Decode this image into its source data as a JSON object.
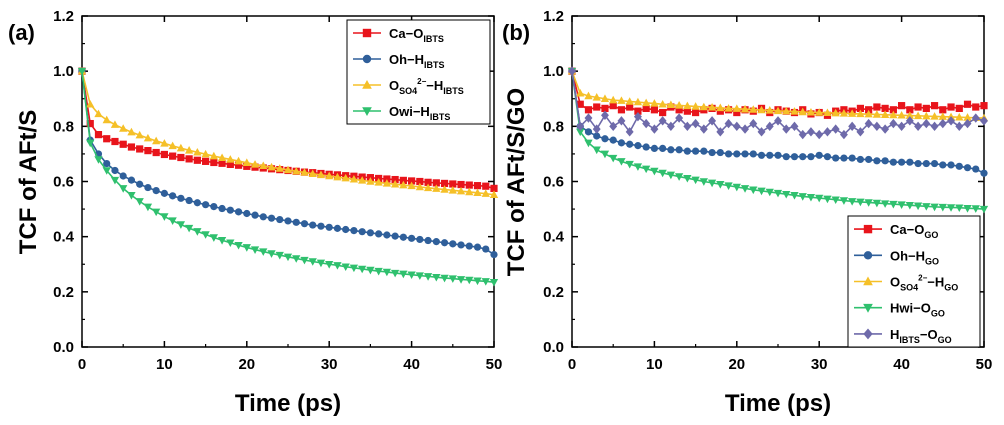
{
  "chart_data": [
    {
      "type": "line",
      "panel_label": "(a)",
      "xlabel": "Time (ps)",
      "ylabel": "TCF of AFt/S",
      "xlim": [
        0,
        50
      ],
      "ylim": [
        0,
        1.2
      ],
      "xticks": [
        "0",
        "10",
        "20",
        "30",
        "40",
        "50"
      ],
      "yticks": [
        "0.0",
        "0.2",
        "0.4",
        "0.6",
        "0.8",
        "1.0",
        "1.2"
      ],
      "legend_position": "top-right",
      "series": [
        {
          "name": "Ca–O_IBTS",
          "label_base": "Ca−O",
          "label_sub": "IBTS",
          "label_sup": "",
          "label_tail": "",
          "label_tail_sub": "",
          "color": "#e8141b",
          "marker": "square",
          "x": [
            0,
            1,
            2,
            3,
            4,
            5,
            6,
            7,
            8,
            9,
            10,
            11,
            12,
            13,
            14,
            15,
            16,
            17,
            18,
            19,
            20,
            21,
            22,
            23,
            24,
            25,
            26,
            27,
            28,
            29,
            30,
            31,
            32,
            33,
            34,
            35,
            36,
            37,
            38,
            39,
            40,
            41,
            42,
            43,
            44,
            45,
            46,
            47,
            48,
            49,
            50
          ],
          "values": [
            1.0,
            0.81,
            0.77,
            0.755,
            0.745,
            0.735,
            0.725,
            0.718,
            0.712,
            0.705,
            0.698,
            0.692,
            0.687,
            0.682,
            0.677,
            0.673,
            0.669,
            0.666,
            0.662,
            0.659,
            0.655,
            0.652,
            0.649,
            0.646,
            0.643,
            0.64,
            0.637,
            0.634,
            0.632,
            0.629,
            0.626,
            0.624,
            0.621,
            0.619,
            0.616,
            0.614,
            0.611,
            0.609,
            0.607,
            0.604,
            0.602,
            0.6,
            0.597,
            0.595,
            0.593,
            0.591,
            0.589,
            0.587,
            0.585,
            0.583,
            0.575
          ]
        },
        {
          "name": "Oh–H_IBTS",
          "label_base": "Oh−H",
          "label_sub": "IBTS",
          "label_sup": "",
          "label_tail": "",
          "label_tail_sub": "",
          "color": "#2f5f9a",
          "marker": "circle",
          "x": [
            0,
            1,
            2,
            3,
            4,
            5,
            6,
            7,
            8,
            9,
            10,
            11,
            12,
            13,
            14,
            15,
            16,
            17,
            18,
            19,
            20,
            21,
            22,
            23,
            24,
            25,
            26,
            27,
            28,
            29,
            30,
            31,
            32,
            33,
            34,
            35,
            36,
            37,
            38,
            39,
            40,
            41,
            42,
            43,
            44,
            45,
            46,
            47,
            48,
            49,
            50
          ],
          "values": [
            1.0,
            0.75,
            0.7,
            0.665,
            0.64,
            0.62,
            0.605,
            0.59,
            0.578,
            0.567,
            0.557,
            0.548,
            0.539,
            0.531,
            0.523,
            0.516,
            0.509,
            0.502,
            0.496,
            0.49,
            0.484,
            0.478,
            0.472,
            0.467,
            0.462,
            0.457,
            0.452,
            0.447,
            0.442,
            0.438,
            0.434,
            0.43,
            0.426,
            0.422,
            0.418,
            0.414,
            0.41,
            0.406,
            0.402,
            0.398,
            0.394,
            0.39,
            0.386,
            0.382,
            0.378,
            0.374,
            0.37,
            0.366,
            0.362,
            0.355,
            0.335
          ]
        },
        {
          "name": "O_SO4²⁻–H_IBTS",
          "label_base": "O",
          "label_sub": "SO4",
          "label_sup": "2−",
          "label_tail": "−H",
          "label_tail_sub": "IBTS",
          "color": "#f5c028",
          "marker": "triangle-up",
          "x": [
            0,
            1,
            2,
            3,
            4,
            5,
            6,
            7,
            8,
            9,
            10,
            11,
            12,
            13,
            14,
            15,
            16,
            17,
            18,
            19,
            20,
            21,
            22,
            23,
            24,
            25,
            26,
            27,
            28,
            29,
            30,
            31,
            32,
            33,
            34,
            35,
            36,
            37,
            38,
            39,
            40,
            41,
            42,
            43,
            44,
            45,
            46,
            47,
            48,
            49,
            50
          ],
          "values": [
            1.0,
            0.88,
            0.845,
            0.823,
            0.806,
            0.792,
            0.779,
            0.768,
            0.757,
            0.747,
            0.738,
            0.729,
            0.721,
            0.713,
            0.706,
            0.699,
            0.692,
            0.686,
            0.68,
            0.674,
            0.668,
            0.662,
            0.657,
            0.652,
            0.647,
            0.642,
            0.637,
            0.633,
            0.628,
            0.624,
            0.62,
            0.616,
            0.612,
            0.608,
            0.604,
            0.6,
            0.597,
            0.593,
            0.59,
            0.587,
            0.584,
            0.58,
            0.577,
            0.574,
            0.571,
            0.568,
            0.565,
            0.562,
            0.559,
            0.556,
            0.552
          ]
        },
        {
          "name": "Owi–H_IBTS",
          "label_base": "Owi−H",
          "label_sub": "IBTS",
          "label_sup": "",
          "label_tail": "",
          "label_tail_sub": "",
          "color": "#2fc06e",
          "marker": "triangle-down",
          "x": [
            0,
            1,
            2,
            3,
            4,
            5,
            6,
            7,
            8,
            9,
            10,
            11,
            12,
            13,
            14,
            15,
            16,
            17,
            18,
            19,
            20,
            21,
            22,
            23,
            24,
            25,
            26,
            27,
            28,
            29,
            30,
            31,
            32,
            33,
            34,
            35,
            36,
            37,
            38,
            39,
            40,
            41,
            42,
            43,
            44,
            45,
            46,
            47,
            48,
            49,
            50
          ],
          "values": [
            1.0,
            0.74,
            0.68,
            0.64,
            0.605,
            0.575,
            0.55,
            0.528,
            0.508,
            0.49,
            0.473,
            0.458,
            0.444,
            0.431,
            0.419,
            0.408,
            0.397,
            0.387,
            0.378,
            0.369,
            0.361,
            0.353,
            0.346,
            0.339,
            0.333,
            0.327,
            0.321,
            0.315,
            0.31,
            0.305,
            0.3,
            0.296,
            0.291,
            0.287,
            0.283,
            0.279,
            0.275,
            0.272,
            0.268,
            0.265,
            0.262,
            0.259,
            0.256,
            0.253,
            0.25,
            0.248,
            0.245,
            0.243,
            0.24,
            0.238,
            0.235
          ]
        }
      ]
    },
    {
      "type": "line",
      "panel_label": "(b)",
      "xlabel": "Time (ps)",
      "ylabel": "TCF of AFt/S/GO",
      "xlim": [
        0,
        50
      ],
      "ylim": [
        0,
        1.2
      ],
      "xticks": [
        "0",
        "10",
        "20",
        "30",
        "40",
        "50"
      ],
      "yticks": [
        "0.0",
        "0.2",
        "0.4",
        "0.6",
        "0.8",
        "1.0",
        "1.2"
      ],
      "legend_position": "bottom-right",
      "series": [
        {
          "name": "Ca–O_GO",
          "label_base": "Ca−O",
          "label_sub": "GO",
          "label_sup": "",
          "label_tail": "",
          "label_tail_sub": "",
          "color": "#e8141b",
          "marker": "square",
          "x": [
            0,
            1,
            2,
            3,
            4,
            5,
            6,
            7,
            8,
            9,
            10,
            11,
            12,
            13,
            14,
            15,
            16,
            17,
            18,
            19,
            20,
            21,
            22,
            23,
            24,
            25,
            26,
            27,
            28,
            29,
            30,
            31,
            32,
            33,
            34,
            35,
            36,
            37,
            38,
            39,
            40,
            41,
            42,
            43,
            44,
            45,
            46,
            47,
            48,
            49,
            50
          ],
          "values": [
            1.0,
            0.88,
            0.86,
            0.87,
            0.865,
            0.875,
            0.86,
            0.87,
            0.855,
            0.865,
            0.86,
            0.85,
            0.87,
            0.86,
            0.855,
            0.85,
            0.86,
            0.865,
            0.855,
            0.86,
            0.85,
            0.86,
            0.855,
            0.865,
            0.85,
            0.86,
            0.855,
            0.85,
            0.86,
            0.845,
            0.85,
            0.84,
            0.855,
            0.86,
            0.855,
            0.865,
            0.86,
            0.87,
            0.865,
            0.86,
            0.875,
            0.86,
            0.87,
            0.865,
            0.875,
            0.86,
            0.87,
            0.865,
            0.88,
            0.87,
            0.875
          ]
        },
        {
          "name": "Oh–H_GO",
          "label_base": "Oh−H",
          "label_sub": "GO",
          "label_sup": "",
          "label_tail": "",
          "label_tail_sub": "",
          "color": "#2f5f9a",
          "marker": "circle",
          "x": [
            0,
            1,
            2,
            3,
            4,
            5,
            6,
            7,
            8,
            9,
            10,
            11,
            12,
            13,
            14,
            15,
            16,
            17,
            18,
            19,
            20,
            21,
            22,
            23,
            24,
            25,
            26,
            27,
            28,
            29,
            30,
            31,
            32,
            33,
            34,
            35,
            36,
            37,
            38,
            39,
            40,
            41,
            42,
            43,
            44,
            45,
            46,
            47,
            48,
            49,
            50
          ],
          "values": [
            1.0,
            0.8,
            0.78,
            0.765,
            0.755,
            0.75,
            0.74,
            0.735,
            0.73,
            0.725,
            0.72,
            0.72,
            0.715,
            0.715,
            0.71,
            0.71,
            0.71,
            0.705,
            0.705,
            0.7,
            0.7,
            0.7,
            0.7,
            0.695,
            0.695,
            0.695,
            0.69,
            0.69,
            0.69,
            0.69,
            0.695,
            0.69,
            0.685,
            0.685,
            0.685,
            0.68,
            0.68,
            0.675,
            0.675,
            0.67,
            0.67,
            0.67,
            0.665,
            0.665,
            0.665,
            0.66,
            0.66,
            0.655,
            0.65,
            0.645,
            0.63
          ]
        },
        {
          "name": "O_SO4²⁻–H_GO",
          "label_base": "O",
          "label_sub": "SO4",
          "label_sup": "2−",
          "label_tail": "−H",
          "label_tail_sub": "GO",
          "color": "#f5c028",
          "marker": "triangle-up",
          "x": [
            0,
            1,
            2,
            3,
            4,
            5,
            6,
            7,
            8,
            9,
            10,
            11,
            12,
            13,
            14,
            15,
            16,
            17,
            18,
            19,
            20,
            21,
            22,
            23,
            24,
            25,
            26,
            27,
            28,
            29,
            30,
            31,
            32,
            33,
            34,
            35,
            36,
            37,
            38,
            39,
            40,
            41,
            42,
            43,
            44,
            45,
            46,
            47,
            48,
            49,
            50
          ],
          "values": [
            1.0,
            0.92,
            0.91,
            0.905,
            0.9,
            0.895,
            0.893,
            0.89,
            0.888,
            0.885,
            0.883,
            0.88,
            0.878,
            0.876,
            0.874,
            0.872,
            0.87,
            0.869,
            0.867,
            0.865,
            0.864,
            0.862,
            0.861,
            0.859,
            0.858,
            0.856,
            0.855,
            0.854,
            0.852,
            0.851,
            0.85,
            0.849,
            0.848,
            0.847,
            0.846,
            0.845,
            0.844,
            0.843,
            0.842,
            0.841,
            0.84,
            0.839,
            0.838,
            0.837,
            0.836,
            0.835,
            0.834,
            0.833,
            0.832,
            0.831,
            0.83
          ]
        },
        {
          "name": "Hwi–O_GO",
          "label_base": "Hwi−O",
          "label_sub": "GO",
          "label_sup": "",
          "label_tail": "",
          "label_tail_sub": "",
          "color": "#2fc06e",
          "marker": "triangle-down",
          "x": [
            0,
            1,
            2,
            3,
            4,
            5,
            6,
            7,
            8,
            9,
            10,
            11,
            12,
            13,
            14,
            15,
            16,
            17,
            18,
            19,
            20,
            21,
            22,
            23,
            24,
            25,
            26,
            27,
            28,
            29,
            30,
            31,
            32,
            33,
            34,
            35,
            36,
            37,
            38,
            39,
            40,
            41,
            42,
            43,
            44,
            45,
            46,
            47,
            48,
            49,
            50
          ],
          "values": [
            1.0,
            0.78,
            0.74,
            0.715,
            0.7,
            0.685,
            0.673,
            0.663,
            0.654,
            0.646,
            0.638,
            0.631,
            0.624,
            0.618,
            0.612,
            0.606,
            0.6,
            0.595,
            0.59,
            0.585,
            0.58,
            0.575,
            0.57,
            0.566,
            0.562,
            0.558,
            0.554,
            0.55,
            0.546,
            0.543,
            0.54,
            0.537,
            0.534,
            0.531,
            0.528,
            0.526,
            0.524,
            0.522,
            0.52,
            0.518,
            0.516,
            0.514,
            0.512,
            0.51,
            0.508,
            0.507,
            0.506,
            0.505,
            0.503,
            0.502,
            0.5
          ]
        },
        {
          "name": "H_IBTS–O_GO",
          "label_base": "H",
          "label_sub": "IBTS",
          "label_sup": "",
          "label_tail": "−O",
          "label_tail_sub": "GO",
          "color": "#6e6aaa",
          "marker": "diamond",
          "x": [
            0,
            1,
            2,
            3,
            4,
            5,
            6,
            7,
            8,
            9,
            10,
            11,
            12,
            13,
            14,
            15,
            16,
            17,
            18,
            19,
            20,
            21,
            22,
            23,
            24,
            25,
            26,
            27,
            28,
            29,
            30,
            31,
            32,
            33,
            34,
            35,
            36,
            37,
            38,
            39,
            40,
            41,
            42,
            43,
            44,
            45,
            46,
            47,
            48,
            49,
            50
          ],
          "values": [
            1.0,
            0.8,
            0.83,
            0.79,
            0.84,
            0.8,
            0.82,
            0.78,
            0.835,
            0.81,
            0.79,
            0.82,
            0.8,
            0.83,
            0.8,
            0.81,
            0.79,
            0.82,
            0.78,
            0.81,
            0.8,
            0.79,
            0.81,
            0.78,
            0.8,
            0.82,
            0.79,
            0.8,
            0.77,
            0.78,
            0.77,
            0.78,
            0.79,
            0.77,
            0.8,
            0.78,
            0.81,
            0.8,
            0.79,
            0.81,
            0.8,
            0.82,
            0.8,
            0.81,
            0.8,
            0.81,
            0.82,
            0.8,
            0.81,
            0.83,
            0.82
          ]
        }
      ]
    }
  ]
}
